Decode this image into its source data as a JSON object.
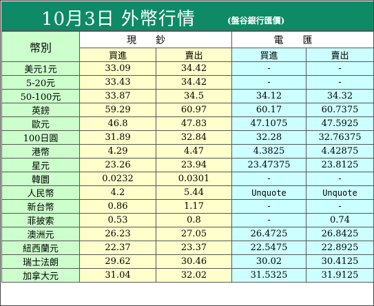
{
  "title": "10月3日 外幣行情",
  "subtitle": "(盤谷銀行匯價)",
  "header": {
    "currency_label": "幣別",
    "cash_group": "現鈔",
    "spot_group": "電匯",
    "buy_label": "買進",
    "sell_label": "賣出"
  },
  "rows": [
    {
      "name": "美元1元",
      "cash_buy": "33.09",
      "cash_sell": "34.42",
      "spot_buy": "-",
      "spot_sell": "-"
    },
    {
      "name": "5-20元",
      "cash_buy": "33.43",
      "cash_sell": "34.42",
      "spot_buy": "-",
      "spot_sell": "-"
    },
    {
      "name": "50-100元",
      "cash_buy": "33.87",
      "cash_sell": "34.5",
      "spot_buy": "34.12",
      "spot_sell": "34.32"
    },
    {
      "name": "英鎊",
      "cash_buy": "59.29",
      "cash_sell": "60.97",
      "spot_buy": "60.17",
      "spot_sell": "60.7375"
    },
    {
      "name": "歐元",
      "cash_buy": "46.8",
      "cash_sell": "47.83",
      "spot_buy": "47.1075",
      "spot_sell": "47.5925"
    },
    {
      "name": "100日圓",
      "cash_buy": "31.89",
      "cash_sell": "32.84",
      "spot_buy": "32.28",
      "spot_sell": "32.76375"
    },
    {
      "name": "港幣",
      "cash_buy": "4.29",
      "cash_sell": "4.47",
      "spot_buy": "4.3825",
      "spot_sell": "4.42875"
    },
    {
      "name": "星元",
      "cash_buy": "23.26",
      "cash_sell": "23.94",
      "spot_buy": "23.47375",
      "spot_sell": "23.8125"
    },
    {
      "name": "韓圜",
      "cash_buy": "0.0232",
      "cash_sell": "0.0301",
      "spot_buy": "-",
      "spot_sell": "-"
    },
    {
      "name": "人民幣",
      "cash_buy": "4.2",
      "cash_sell": "5.44",
      "spot_buy": "Unquote",
      "spot_sell": "Unquote"
    },
    {
      "name": "新台幣",
      "cash_buy": "0.86",
      "cash_sell": "1.17",
      "spot_buy": "-",
      "spot_sell": "-"
    },
    {
      "name": "菲披索",
      "cash_buy": "0.53",
      "cash_sell": "0.8",
      "spot_buy": "-",
      "spot_sell": "0.74"
    },
    {
      "name": "澳洲元",
      "cash_buy": "26.23",
      "cash_sell": "27.05",
      "spot_buy": "26.4725",
      "spot_sell": "26.8425"
    },
    {
      "name": "紐西蘭元",
      "cash_buy": "22.37",
      "cash_sell": "23.37",
      "spot_buy": "22.5475",
      "spot_sell": "22.8925"
    },
    {
      "name": "瑞士法朗",
      "cash_buy": "29.62",
      "cash_sell": "30.46",
      "spot_buy": "30.02",
      "spot_sell": "30.4125"
    },
    {
      "name": "加拿大元",
      "cash_buy": "31.04",
      "cash_sell": "32.02",
      "spot_buy": "31.5325",
      "spot_sell": "31.9125"
    }
  ],
  "colors": {
    "title_bar": "#0e8a66",
    "name_column": "#ccffcc",
    "cash_columns": "#ffffcc",
    "spot_columns": "#ccffff"
  }
}
